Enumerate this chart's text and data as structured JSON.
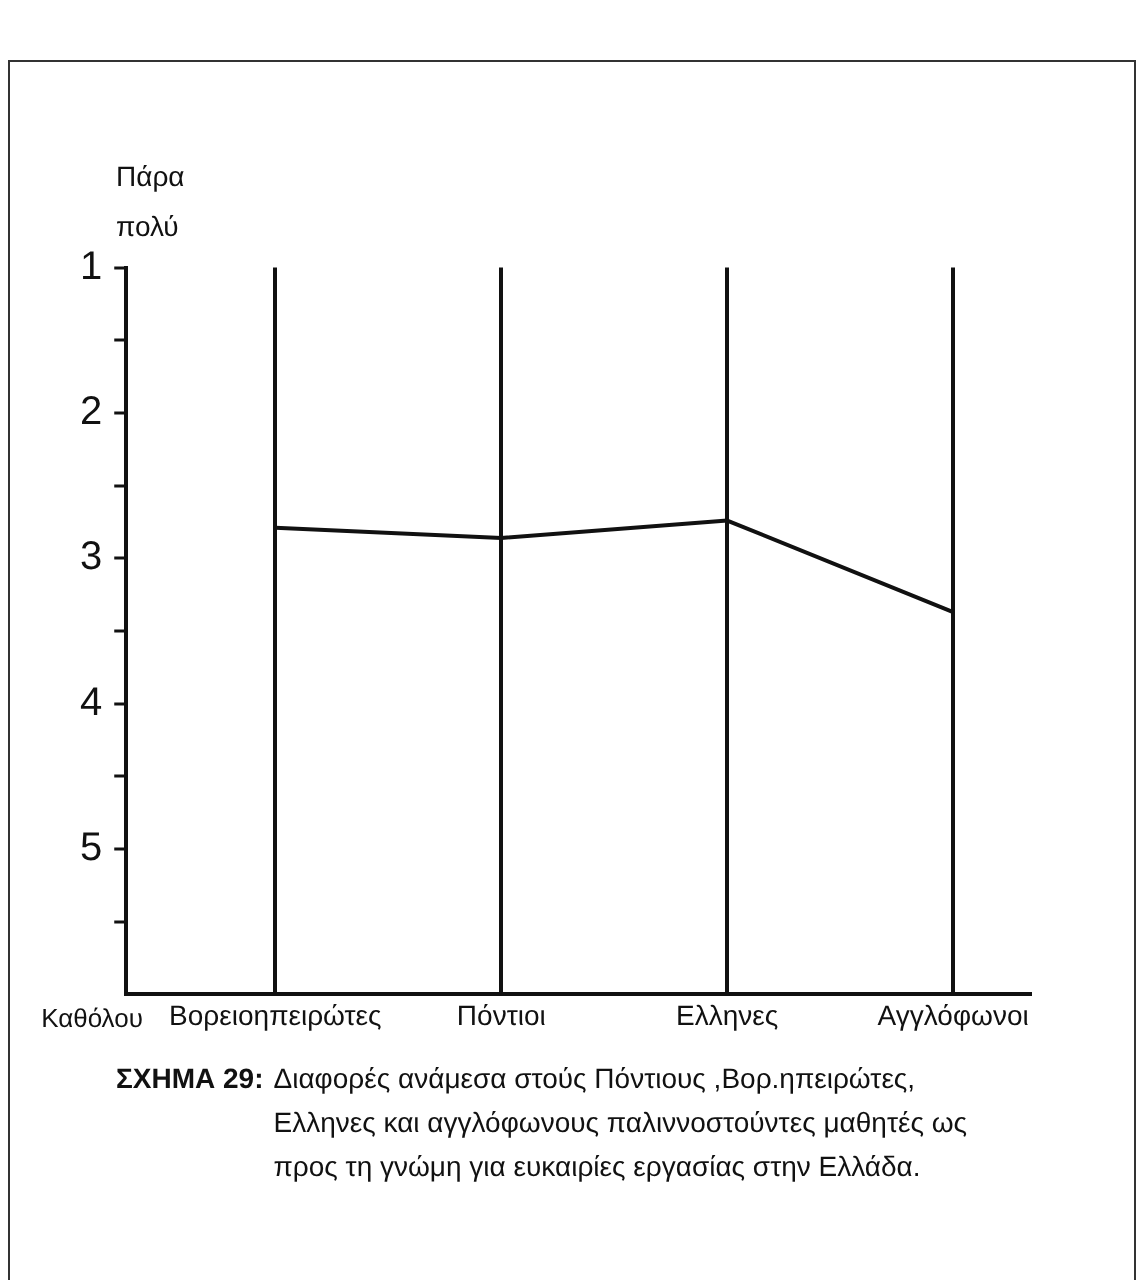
{
  "chart_data": {
    "type": "line",
    "title": "ΣΧΗΜΑ 29:",
    "annotations": [
      "Καθόλου",
      "Διαφορές ανάμεσα στούς Πόντιους ,Βορ.ηπειρώτες, Ελληνες και αγγλόφωνους παλιννοστούντες μαθητές ως προς τη γνώμη για ευκαιρίες εργασίας στην Ελλάδα."
    ],
    "ylabel": "Πάρα πολύ",
    "categories": [
      "Βορειοηπειρώτες",
      "Πόντιοι",
      "Ελληνες",
      "Αγγλόφωνοι"
    ],
    "series": [
      {
        "color": "#111111",
        "values": [
          2.79,
          2.86,
          2.74,
          3.37
        ]
      }
    ],
    "ylim": [
      6,
      1
    ],
    "yticks": [
      1,
      {
        "value": 1.5,
        "label": null
      },
      2,
      {
        "value": 2.5,
        "label": null
      },
      3,
      {
        "value": 3.5,
        "label": null
      },
      4,
      {
        "value": 4.5,
        "label": null
      },
      5,
      {
        "value": 5.5,
        "label": null
      }
    ],
    "grid": "x",
    "legend": false,
    "marker": "none",
    "line_style": "solid"
  }
}
